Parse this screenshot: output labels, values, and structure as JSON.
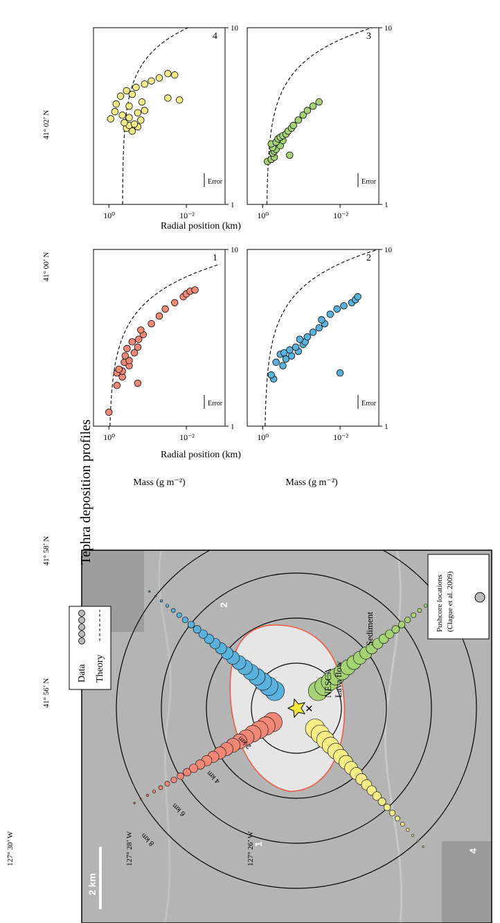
{
  "figure_title": "Tephra deposition profiles",
  "legend": {
    "data_label": "Data",
    "theory_label": "Theory"
  },
  "axes": {
    "xlabel": "Radial position (km)",
    "ylabel": "Mass (g m⁻²)",
    "ytick_1": "10⁰",
    "ytick_2": "10⁻²",
    "xtick_1": "1",
    "xtick_10": "10",
    "error_label": "Error"
  },
  "map": {
    "lava_label_1": "NESCA",
    "lava_label_2": "Lava flow",
    "sediment_label": "Sediment",
    "scale_label": "2 km",
    "ring_labels": [
      "2 km",
      "4 km",
      "6 km",
      "8 km"
    ],
    "transect_labels": [
      "1",
      "2",
      "3",
      "4"
    ],
    "lat_labels": [
      "41° 02’ N",
      "41° 00’ N",
      "41° 58’ N",
      "41° 56’ N"
    ],
    "lon_labels": [
      "127° 30’ W",
      "127° 28’ W",
      "127° 26’ W"
    ],
    "pushcore_label_1": "Pushcore locations",
    "pushcore_label_2": "(Clague et al. 2009)"
  },
  "colors": {
    "p1": "#f08878",
    "p2": "#5ab2dc",
    "p3": "#a6d276",
    "p4": "#f6ec88",
    "lava": "#ef5b42",
    "star": "#f4e73c",
    "seafloor": "#b4b4b4"
  },
  "chart_data": [
    {
      "type": "scatter",
      "panel": "1",
      "xscale": "log",
      "yscale": "log",
      "xlim": [
        1,
        10
      ],
      "ylim": [
        0.001,
        2.5
      ],
      "x": [
        1.2,
        1.7,
        1.75,
        1.9,
        2.0,
        2.05,
        2.1,
        2.2,
        2.3,
        2.35,
        2.5,
        2.6,
        2.75,
        2.8,
        3.0,
        3.1,
        3.3,
        3.5,
        3.8,
        4.2,
        4.6,
        5.0,
        5.4,
        5.6,
        5.8,
        5.9
      ],
      "y": [
        1.0,
        0.62,
        0.18,
        0.45,
        0.62,
        0.45,
        0.55,
        0.3,
        0.4,
        0.3,
        0.38,
        0.22,
        0.34,
        0.18,
        0.25,
        0.17,
        0.13,
        0.15,
        0.08,
        0.05,
        0.035,
        0.02,
        0.012,
        0.01,
        0.008,
        0.006
      ]
    },
    {
      "type": "scatter",
      "panel": "2",
      "xscale": "log",
      "yscale": "log",
      "xlim": [
        1,
        10
      ],
      "ylim": [
        0.001,
        2.5
      ],
      "x": [
        1.85,
        1.95,
        2.0,
        2.2,
        2.3,
        2.4,
        2.5,
        2.55,
        2.6,
        2.65,
        2.7,
        2.8,
        2.9,
        3.0,
        3.1,
        3.2,
        3.4,
        3.6,
        3.8,
        4.0,
        4.3,
        4.6,
        4.8,
        5.0,
        5.2,
        5.4
      ],
      "y": [
        0.52,
        0.6,
        0.01,
        0.3,
        0.45,
        0.25,
        0.18,
        0.35,
        0.28,
        0.12,
        0.2,
        0.14,
        0.09,
        0.08,
        0.11,
        0.07,
        0.05,
        0.035,
        0.025,
        0.03,
        0.018,
        0.012,
        0.008,
        0.005,
        0.004,
        0.0035
      ]
    },
    {
      "type": "scatter",
      "panel": "3",
      "xscale": "log",
      "yscale": "log",
      "xlim": [
        1,
        10
      ],
      "ylim": [
        0.001,
        2.5
      ],
      "x": [
        1.75,
        1.8,
        1.85,
        1.9,
        1.95,
        2.0,
        2.05,
        2.1,
        2.15,
        2.2,
        2.25,
        2.3,
        2.35,
        2.4,
        2.45,
        2.5,
        2.6,
        2.7,
        2.8,
        3.0,
        3.2,
        3.4,
        3.6,
        3.8
      ],
      "y": [
        0.75,
        0.6,
        0.5,
        0.2,
        0.55,
        0.5,
        0.45,
        0.55,
        0.35,
        0.6,
        0.45,
        0.3,
        0.4,
        0.35,
        0.3,
        0.25,
        0.22,
        0.18,
        0.16,
        0.12,
        0.09,
        0.07,
        0.05,
        0.035
      ]
    },
    {
      "type": "scatter",
      "panel": "4",
      "xscale": "log",
      "yscale": "log",
      "xlim": [
        1,
        10
      ],
      "ylim": [
        0.001,
        2.5
      ],
      "x": [
        2.6,
        2.7,
        2.75,
        2.8,
        2.85,
        2.9,
        3.0,
        3.05,
        3.1,
        3.2,
        3.3,
        3.35,
        3.4,
        3.6,
        3.7,
        3.8,
        3.9,
        4.0,
        4.1,
        4.2,
        4.4,
        4.6,
        4.8,
        5.0,
        5.2,
        5.4,
        5.5
      ],
      "y": [
        0.25,
        0.35,
        0.18,
        0.3,
        0.22,
        0.4,
        0.15,
        0.9,
        0.3,
        0.45,
        0.18,
        0.7,
        0.12,
        0.3,
        0.65,
        0.14,
        0.015,
        0.03,
        0.5,
        0.25,
        0.35,
        0.2,
        0.12,
        0.08,
        0.05,
        0.02,
        0.03
      ]
    }
  ]
}
